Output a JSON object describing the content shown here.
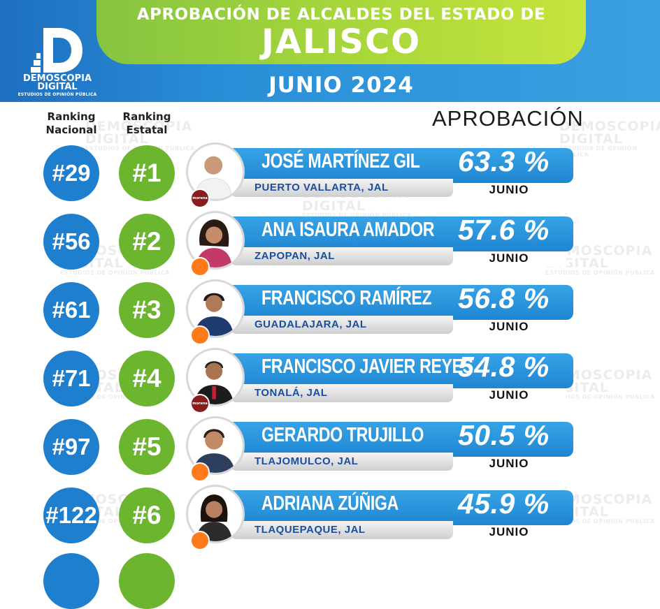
{
  "header": {
    "title_line1": "APROBACIÓN DE ALCALDES DEL ESTADO DE",
    "title_line2": "JALISCO",
    "title_line3": "JUNIO 2024",
    "logo_name1": "DEMOSCOPIA",
    "logo_name2": "DIGITAL",
    "logo_sub": "ESTUDIOS DE OPINIÓN PÚBLICA"
  },
  "columns": {
    "ranking_nacional": [
      "Ranking",
      "Nacional"
    ],
    "ranking_estatal": [
      "Ranking",
      "Estatal"
    ],
    "aprobacion": "APROBACIÓN"
  },
  "watermark": {
    "line1": "DEMOSCOPIA",
    "line2": "DIGITAL",
    "line3": "ESTUDIOS DE OPINIÓN PÚBLICA"
  },
  "colors": {
    "blue": "#1f7fcf",
    "green": "#6cb52e",
    "morena": "#8a1c1c",
    "movimiento_ciudadano": "#ff7a1a"
  },
  "rows": [
    {
      "nacional": "#29",
      "estatal": "#1",
      "name": "JOSÉ MARTÍNEZ GIL",
      "place": "PUERTO VALLARTA, JAL",
      "approval": "63.3 %",
      "month": "JUNIO",
      "party": "morena",
      "party_label": "morena"
    },
    {
      "nacional": "#56",
      "estatal": "#2",
      "name": "ANA ISAURA AMADOR",
      "place": "ZAPOPAN, JAL",
      "approval": "57.6 %",
      "month": "JUNIO",
      "party": "mc",
      "party_label": ""
    },
    {
      "nacional": "#61",
      "estatal": "#3",
      "name": "FRANCISCO RAMÍREZ",
      "place": "GUADALAJARA, JAL",
      "approval": "56.8 %",
      "month": "JUNIO",
      "party": "mc",
      "party_label": ""
    },
    {
      "nacional": "#71",
      "estatal": "#4",
      "name": "FRANCISCO JAVIER REYES",
      "place": "TONALÁ, JAL",
      "approval": "54.8 %",
      "month": "JUNIO",
      "party": "morena",
      "party_label": "morena"
    },
    {
      "nacional": "#97",
      "estatal": "#5",
      "name": "GERARDO TRUJILLO",
      "place": "TLAJOMULCO, JAL",
      "approval": "50.5 %",
      "month": "JUNIO",
      "party": "mc",
      "party_label": ""
    },
    {
      "nacional": "#122",
      "estatal": "#6",
      "name": "ADRIANA ZÚÑIGA",
      "place": "TLAQUEPAQUE, JAL",
      "approval": "45.9 %",
      "month": "JUNIO",
      "party": "mc",
      "party_label": ""
    }
  ]
}
